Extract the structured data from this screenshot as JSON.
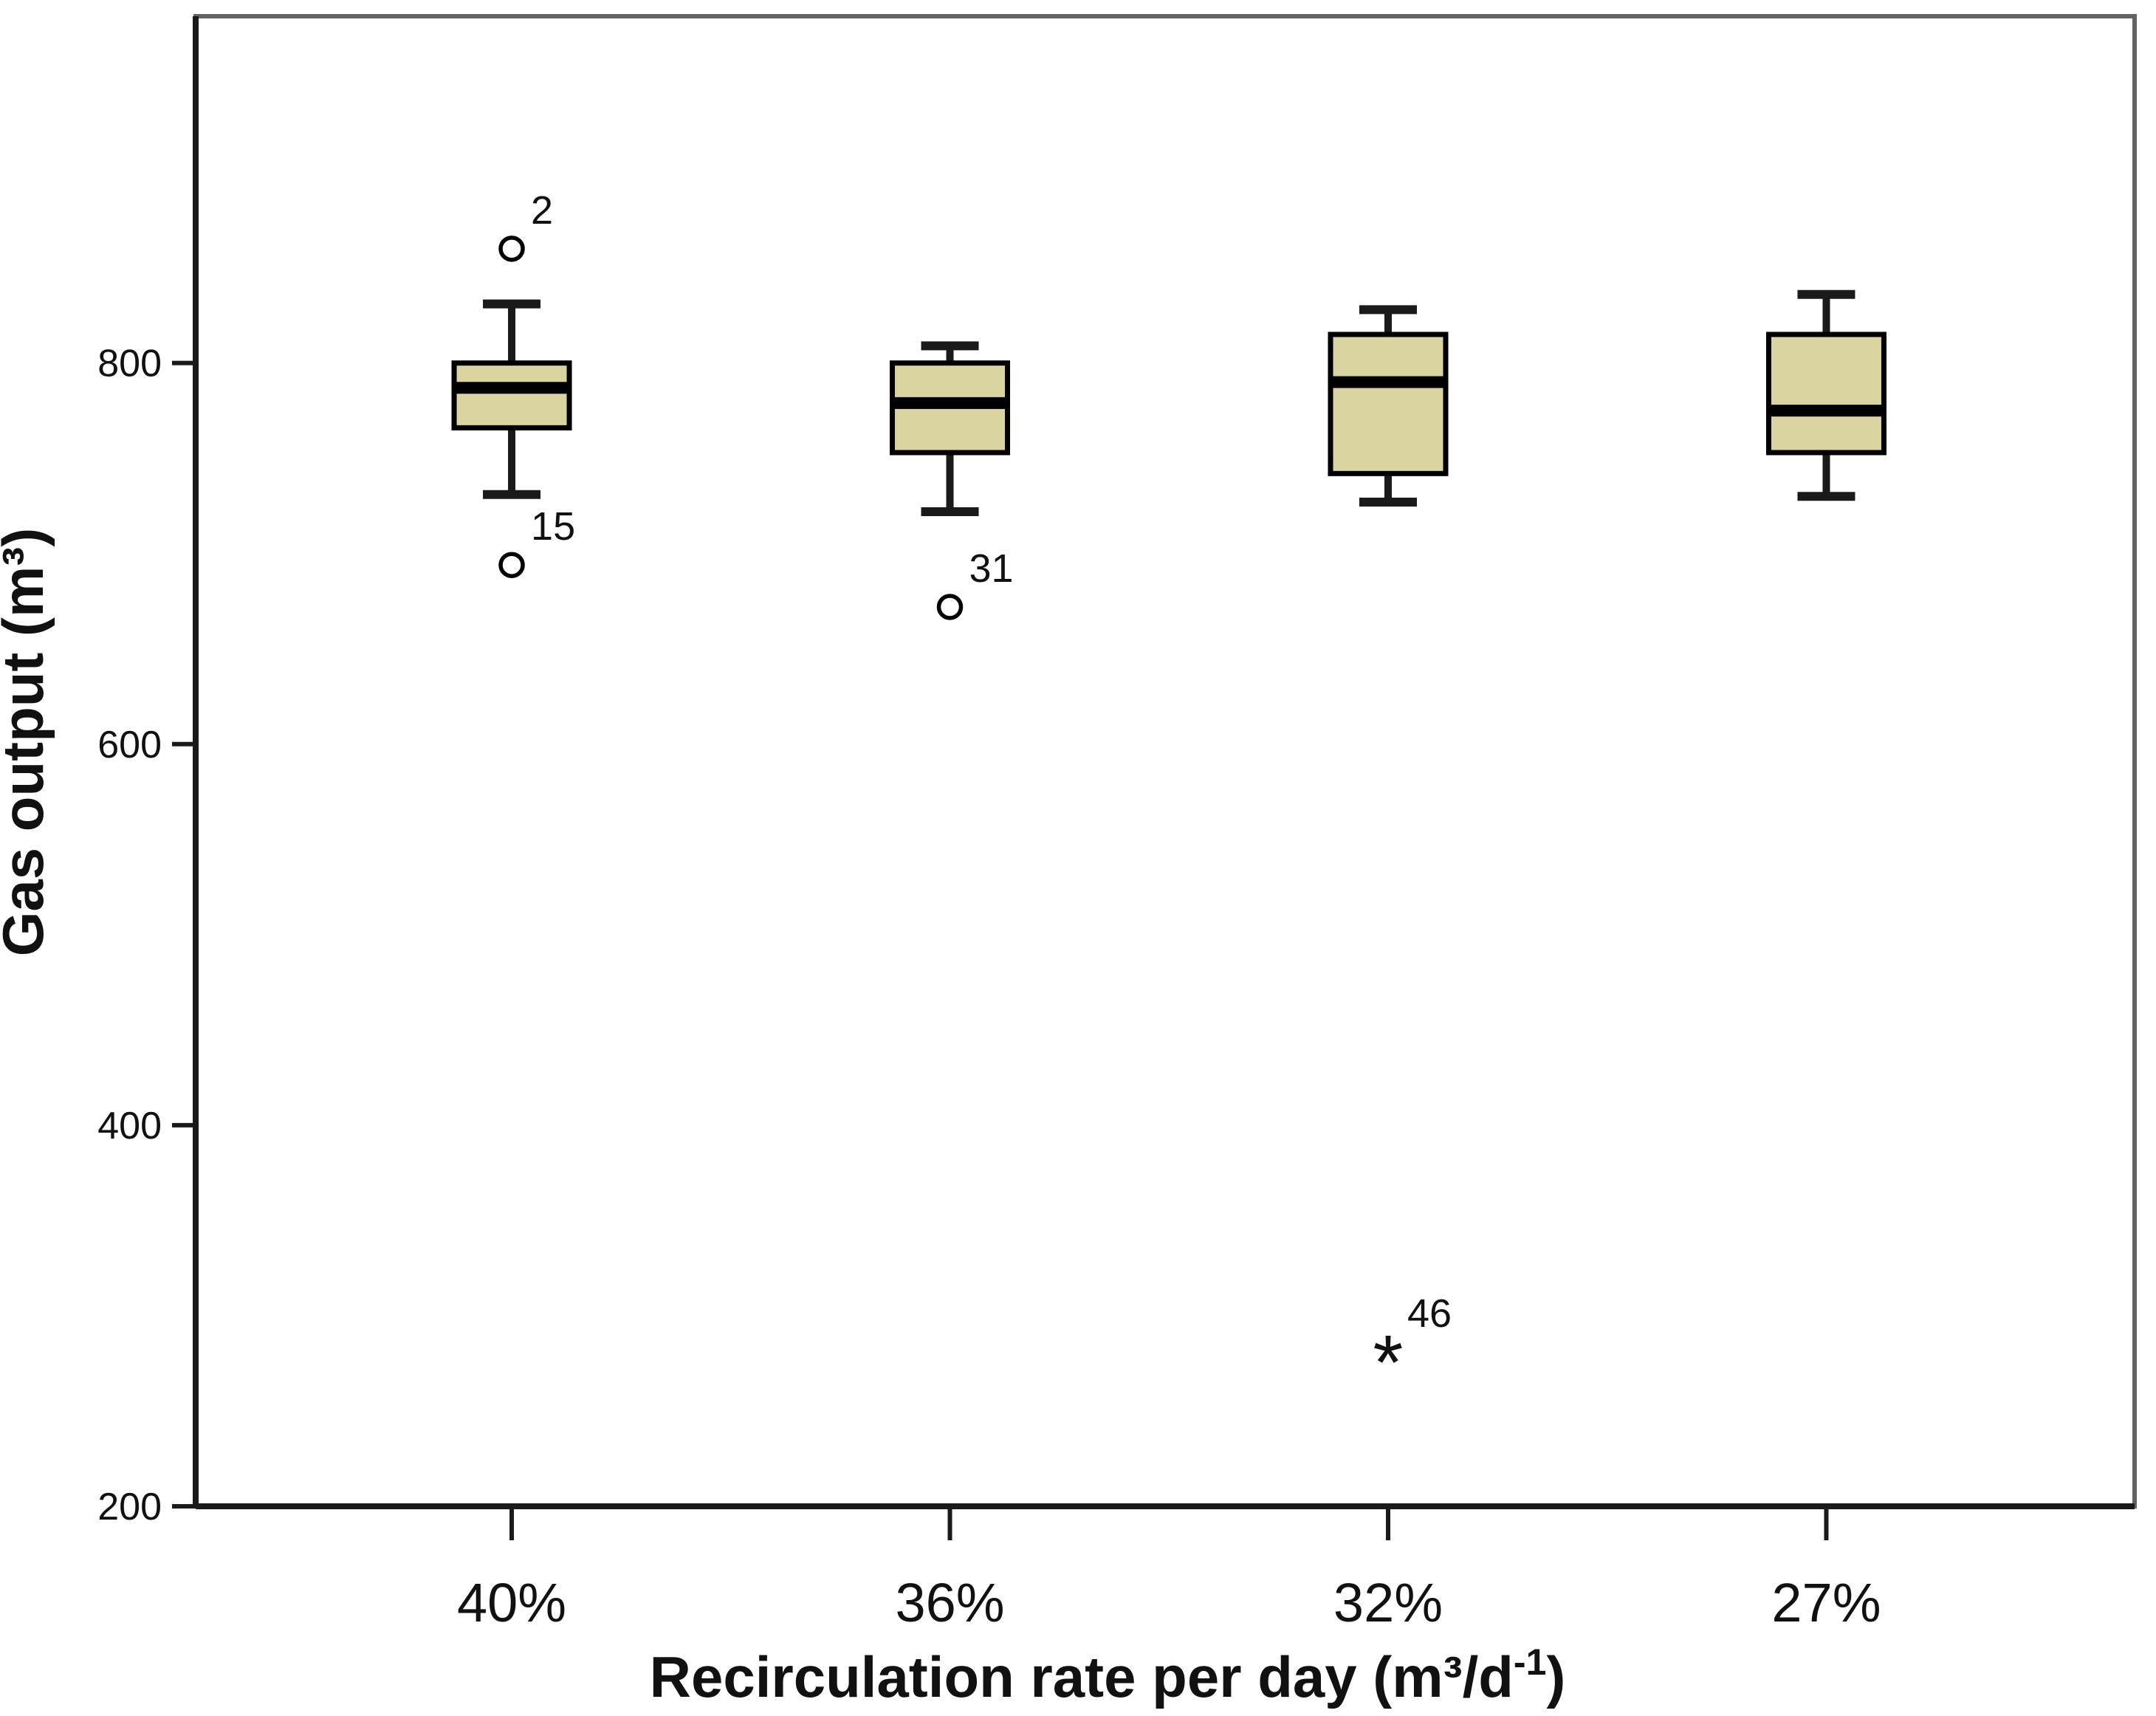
{
  "chart_data": {
    "type": "boxplot",
    "title": "",
    "ylabel": "Gas output (m³)",
    "xlabel": {
      "text": "Recirculation rate per day (m³/d⁻¹)",
      "pre": "Recirculation rate per day (m³/d",
      "sup": "-1",
      "post": ")"
    },
    "categories": [
      "40%",
      "36%",
      "32%",
      "27%"
    ],
    "yticks": [
      200,
      400,
      600,
      800
    ],
    "ylim": [
      200,
      982
    ],
    "grid": false,
    "legend": null,
    "boxes": [
      {
        "category": "40%",
        "whisker_low": 731,
        "q1": 766,
        "median": 787,
        "q3": 800,
        "whisker_high": 831,
        "outliers": [
          {
            "label": "2",
            "value": 860,
            "marker": "circle"
          },
          {
            "label": "15",
            "value": 694,
            "marker": "circle"
          }
        ]
      },
      {
        "category": "36%",
        "whisker_low": 722,
        "q1": 753,
        "median": 779,
        "q3": 800,
        "whisker_high": 809,
        "outliers": [
          {
            "label": "31",
            "value": 672,
            "marker": "circle"
          }
        ]
      },
      {
        "category": "32%",
        "whisker_low": 727,
        "q1": 742,
        "median": 790,
        "q3": 815,
        "whisker_high": 828,
        "outliers": [
          {
            "label": "46",
            "value": 281,
            "marker": "asterisk"
          }
        ]
      },
      {
        "category": "27%",
        "whisker_low": 730,
        "q1": 753,
        "median": 775,
        "q3": 815,
        "whisker_high": 836,
        "outliers": []
      }
    ],
    "colors": {
      "box_fill": "#d9d4a0",
      "box_border": "#000000",
      "median": "#000000",
      "whisker": "#1a1a1a",
      "frame": "#636363",
      "axis": "#1a1a1a",
      "text": "#111111",
      "background": "#ffffff"
    }
  }
}
